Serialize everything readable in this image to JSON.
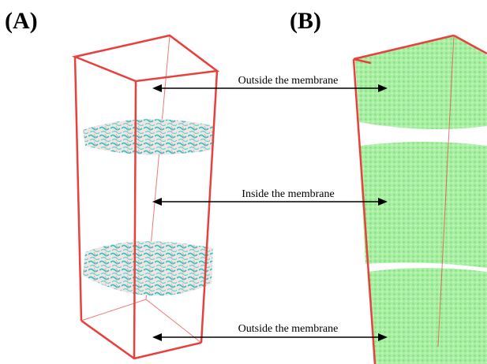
{
  "panels": [
    {
      "label": "(A)"
    },
    {
      "label": "(B)"
    }
  ],
  "annotations": [
    "Outside the membrane",
    "Inside the membrane",
    "Outside the membrane"
  ]
}
